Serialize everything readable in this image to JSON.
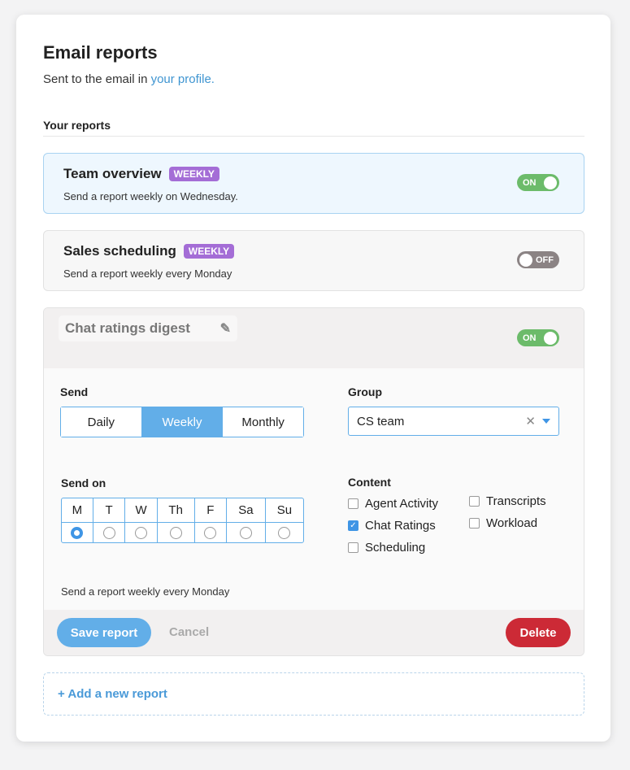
{
  "header": {
    "title": "Email reports",
    "subtitle_prefix": "Sent to the email in ",
    "subtitle_link": "your profile."
  },
  "section_label": "Your reports",
  "reports": [
    {
      "title": "Team overview",
      "badge": "WEEKLY",
      "description": "Send a report weekly on Wednesday.",
      "toggle": "ON",
      "enabled": true
    },
    {
      "title": "Sales scheduling",
      "badge": "WEEKLY",
      "description": "Send a report weekly every Monday",
      "toggle": "OFF",
      "enabled": false
    }
  ],
  "editor": {
    "title": "Chat ratings digest",
    "toggle": "ON",
    "enabled": true,
    "send_label": "Send",
    "frequency_options": [
      "Daily",
      "Weekly",
      "Monthly"
    ],
    "frequency_selected": "Weekly",
    "group_label": "Group",
    "group_value": "CS team",
    "send_on_label": "Send on",
    "days": [
      "M",
      "T",
      "W",
      "Th",
      "F",
      "Sa",
      "Su"
    ],
    "day_selected": "M",
    "content_label": "Content",
    "content_options": [
      {
        "label": "Agent Activity",
        "checked": false
      },
      {
        "label": "Chat Ratings",
        "checked": true
      },
      {
        "label": "Scheduling",
        "checked": false
      },
      {
        "label": "Transcripts",
        "checked": false
      },
      {
        "label": "Workload",
        "checked": false
      }
    ],
    "summary": "Send a report weekly every Monday",
    "save_label": "Save report",
    "cancel_label": "Cancel",
    "delete_label": "Delete"
  },
  "add_report_label": "+ Add a new report",
  "colors": {
    "accent": "#62aee8",
    "badge": "#a46dd6",
    "on": "#6cbb6a",
    "off": "#8b8384",
    "delete": "#cc2a36",
    "link": "#3f95d1"
  }
}
